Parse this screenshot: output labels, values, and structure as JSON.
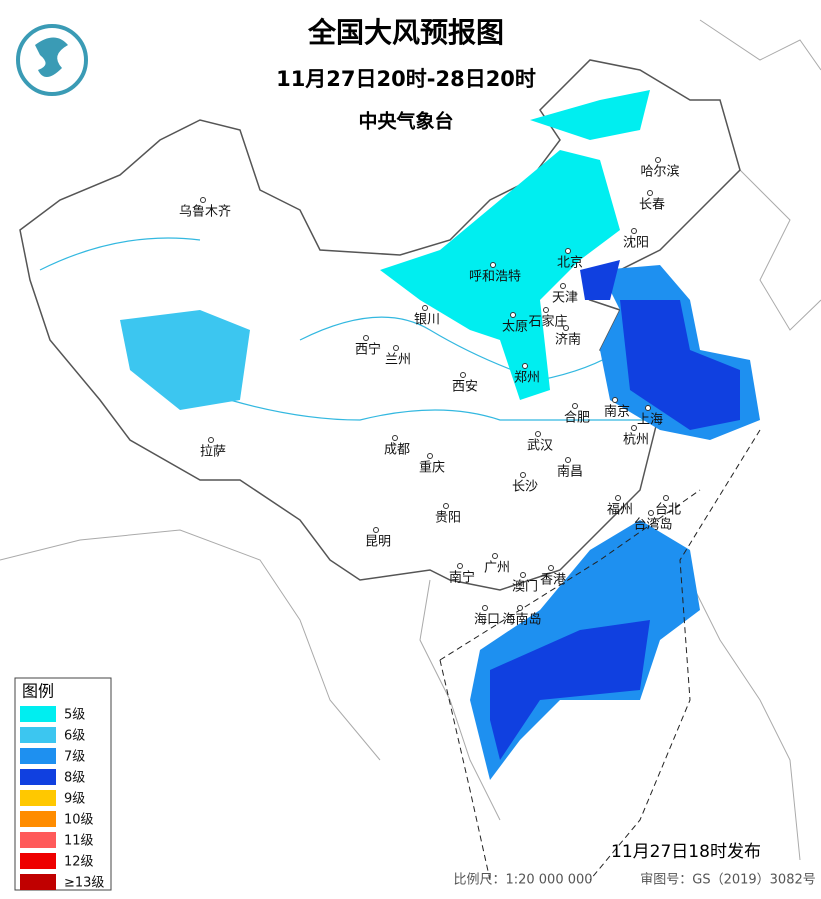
{
  "header": {
    "title": "全国大风预报图",
    "period": "11月27日20时-28日20时",
    "issuer": "中央气象台"
  },
  "cities": [
    "乌鲁木齐",
    "哈尔滨",
    "长春",
    "沈阳",
    "北京",
    "天津",
    "呼和浩特",
    "银川",
    "太原",
    "石家庄",
    "济南",
    "西宁",
    "兰州",
    "郑州",
    "西安",
    "合肥",
    "南京",
    "上海",
    "杭州",
    "武汉",
    "成都",
    "重庆",
    "拉萨",
    "南昌",
    "长沙",
    "福州",
    "台北",
    "贵阳",
    "昆明",
    "广州",
    "南宁",
    "澳门",
    "香港",
    "海口",
    "台湾岛",
    "海南岛"
  ],
  "legend": {
    "title": "图例",
    "items": [
      {
        "label": "5级",
        "color": "#00eef0"
      },
      {
        "label": "6级",
        "color": "#3cc6f0"
      },
      {
        "label": "7级",
        "color": "#1e90f0"
      },
      {
        "label": "8级",
        "color": "#1040e0"
      },
      {
        "label": "9级",
        "color": "#ffc800"
      },
      {
        "label": "10级",
        "color": "#ff8c00"
      },
      {
        "label": "11级",
        "color": "#ff5a5a"
      },
      {
        "label": "12级",
        "color": "#ee0000"
      },
      {
        "label": "≥13级",
        "color": "#c00000"
      }
    ]
  },
  "footer": {
    "issued": "11月27日18时发布",
    "scale": "比例尺：1:20 000 000",
    "map_number": "审图号：GS（2019）3082号"
  }
}
